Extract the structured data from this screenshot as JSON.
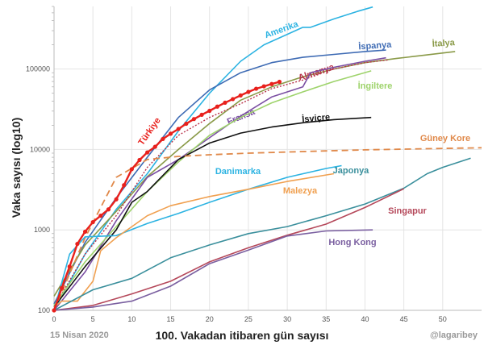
{
  "chart_data": {
    "type": "line",
    "title": "",
    "xlabel": "100. Vakadan itibaren gün sayısı",
    "ylabel": "Vaka sayısı  (log10)",
    "xlim": [
      0,
      55
    ],
    "ylim": [
      100,
      600000
    ],
    "yscale": "log",
    "grid": true,
    "xticks": [
      0,
      5,
      10,
      15,
      20,
      25,
      30,
      35,
      40,
      45,
      50
    ],
    "yticks": [
      100,
      1000,
      10000,
      100000
    ],
    "series": [
      {
        "name": "Amerika",
        "color": "#2cb3e2",
        "style": "solid",
        "points": [
          [
            0,
            100
          ],
          [
            4,
            500
          ],
          [
            8,
            1800
          ],
          [
            12,
            5000
          ],
          [
            16,
            17000
          ],
          [
            20,
            50000
          ],
          [
            24,
            125000
          ],
          [
            27,
            200000
          ],
          [
            30,
            270000
          ],
          [
            32,
            330000
          ],
          [
            33,
            330000
          ],
          [
            36,
            420000
          ],
          [
            39,
            520000
          ],
          [
            41,
            590000
          ]
        ]
      },
      {
        "name": "İspanya",
        "color": "#3e6bb4",
        "style": "solid",
        "points": [
          [
            0,
            120
          ],
          [
            4,
            700
          ],
          [
            8,
            2500
          ],
          [
            12,
            8000
          ],
          [
            16,
            25000
          ],
          [
            20,
            55000
          ],
          [
            24,
            90000
          ],
          [
            28,
            120000
          ],
          [
            32,
            140000
          ],
          [
            36,
            152000
          ],
          [
            40,
            165000
          ],
          [
            42.7,
            172000
          ]
        ]
      },
      {
        "name": "İtalya",
        "color": "#8a9a48",
        "style": "solid",
        "points": [
          [
            0,
            150
          ],
          [
            4,
            650
          ],
          [
            8,
            1700
          ],
          [
            12,
            4600
          ],
          [
            16,
            10000
          ],
          [
            20,
            21000
          ],
          [
            24,
            41000
          ],
          [
            28,
            60000
          ],
          [
            32,
            80000
          ],
          [
            36,
            100000
          ],
          [
            40,
            120000
          ],
          [
            44,
            135000
          ],
          [
            48,
            150000
          ],
          [
            51.6,
            165000
          ]
        ]
      },
      {
        "name": "Almanya",
        "color": "#b8324a",
        "style": "dotted",
        "points": [
          [
            0,
            110
          ],
          [
            4,
            500
          ],
          [
            8,
            1500
          ],
          [
            12,
            6000
          ],
          [
            16,
            15000
          ],
          [
            20,
            25000
          ],
          [
            24,
            37000
          ],
          [
            28,
            57000
          ],
          [
            32,
            73000
          ],
          [
            36,
            100000
          ],
          [
            40,
            120000
          ],
          [
            43,
            130000
          ]
        ]
      },
      {
        "name": "Fransa",
        "color": "#7b4fa3",
        "style": "solid",
        "points": [
          [
            0,
            100
          ],
          [
            4,
            300
          ],
          [
            8,
            1300
          ],
          [
            12,
            4500
          ],
          [
            16,
            7500
          ],
          [
            20,
            14000
          ],
          [
            24,
            26000
          ],
          [
            28,
            45000
          ],
          [
            32,
            60000
          ],
          [
            33,
            90000
          ],
          [
            36,
            105000
          ],
          [
            40,
            125000
          ],
          [
            42.7,
            138000
          ]
        ]
      },
      {
        "name": "İngiltere",
        "color": "#9ed36b",
        "style": "solid",
        "points": [
          [
            0,
            115
          ],
          [
            4,
            400
          ],
          [
            8,
            1100
          ],
          [
            12,
            3000
          ],
          [
            16,
            7000
          ],
          [
            20,
            15000
          ],
          [
            24,
            25000
          ],
          [
            28,
            38000
          ],
          [
            32,
            52000
          ],
          [
            36,
            70000
          ],
          [
            40.8,
            95000
          ]
        ]
      },
      {
        "name": "İsviçre",
        "color": "#111111",
        "style": "solid",
        "points": [
          [
            0,
            110
          ],
          [
            4,
            350
          ],
          [
            8,
            1000
          ],
          [
            10,
            2200
          ],
          [
            12,
            3000
          ],
          [
            16,
            7500
          ],
          [
            20,
            12000
          ],
          [
            24,
            16000
          ],
          [
            28,
            19000
          ],
          [
            32,
            21500
          ],
          [
            36,
            23500
          ],
          [
            40.8,
            25000
          ]
        ]
      },
      {
        "name": "Güney Kore",
        "color": "#e0894a",
        "style": "dashed",
        "points": [
          [
            0,
            100
          ],
          [
            4,
            800
          ],
          [
            8,
            4500
          ],
          [
            12,
            7500
          ],
          [
            16,
            8200
          ],
          [
            20,
            8600
          ],
          [
            25,
            9000
          ],
          [
            30,
            9300
          ],
          [
            35,
            9600
          ],
          [
            40,
            9900
          ],
          [
            45,
            10100
          ],
          [
            55,
            10500
          ]
        ]
      },
      {
        "name": "Danimarka",
        "color": "#2cb3e2",
        "style": "solid",
        "points": [
          [
            0,
            100
          ],
          [
            2,
            500
          ],
          [
            4,
            820
          ],
          [
            8,
            850
          ],
          [
            12,
            1200
          ],
          [
            16,
            1600
          ],
          [
            20,
            2200
          ],
          [
            25,
            3200
          ],
          [
            30,
            4500
          ],
          [
            35,
            5800
          ],
          [
            37,
            6300
          ]
        ]
      },
      {
        "name": "Malezya",
        "color": "#f0a050",
        "style": "solid",
        "points": [
          [
            0,
            110
          ],
          [
            1,
            130
          ],
          [
            3,
            130
          ],
          [
            5,
            230
          ],
          [
            6,
            550
          ],
          [
            8,
            800
          ],
          [
            12,
            1500
          ],
          [
            15,
            2000
          ],
          [
            20,
            2600
          ],
          [
            25,
            3200
          ],
          [
            30,
            4000
          ],
          [
            36,
            5000
          ]
        ]
      },
      {
        "name": "Japonya",
        "color": "#3a8f9c",
        "style": "solid",
        "points": [
          [
            0,
            100
          ],
          [
            5,
            180
          ],
          [
            10,
            250
          ],
          [
            15,
            450
          ],
          [
            20,
            650
          ],
          [
            25,
            900
          ],
          [
            30,
            1100
          ],
          [
            35,
            1500
          ],
          [
            40,
            2100
          ],
          [
            45,
            3300
          ],
          [
            48,
            5000
          ],
          [
            50,
            6000
          ],
          [
            53.6,
            7800
          ]
        ]
      },
      {
        "name": "Singapur",
        "color": "#b5485a",
        "style": "solid",
        "points": [
          [
            0,
            100
          ],
          [
            5,
            115
          ],
          [
            10,
            160
          ],
          [
            15,
            230
          ],
          [
            20,
            400
          ],
          [
            25,
            600
          ],
          [
            30,
            860
          ],
          [
            35,
            1180
          ],
          [
            40,
            1900
          ],
          [
            45,
            3250
          ]
        ]
      },
      {
        "name": "Hong Kong",
        "color": "#7a5fa0",
        "style": "solid",
        "points": [
          [
            0,
            100
          ],
          [
            5,
            110
          ],
          [
            10,
            130
          ],
          [
            15,
            200
          ],
          [
            20,
            380
          ],
          [
            25,
            560
          ],
          [
            30,
            840
          ],
          [
            35,
            970
          ],
          [
            41,
            1000
          ]
        ]
      },
      {
        "name": "Türkiye",
        "color": "#e8201c",
        "style": "markers",
        "points": [
          [
            0,
            100
          ],
          [
            1,
            190
          ],
          [
            2,
            350
          ],
          [
            3,
            670
          ],
          [
            4,
            950
          ],
          [
            5,
            1250
          ],
          [
            6,
            1500
          ],
          [
            7,
            1800
          ],
          [
            8,
            2400
          ],
          [
            9,
            3600
          ],
          [
            10,
            5700
          ],
          [
            11,
            7400
          ],
          [
            12,
            9200
          ],
          [
            13,
            10800
          ],
          [
            14,
            13500
          ],
          [
            15,
            15700
          ],
          [
            16,
            18000
          ],
          [
            17,
            20900
          ],
          [
            18,
            23900
          ],
          [
            19,
            27000
          ],
          [
            20,
            30200
          ],
          [
            21,
            34100
          ],
          [
            22,
            38200
          ],
          [
            23,
            42300
          ],
          [
            24,
            47000
          ],
          [
            25,
            52000
          ],
          [
            26,
            56900
          ],
          [
            27,
            61000
          ],
          [
            28,
            65100
          ],
          [
            29,
            69400
          ]
        ]
      }
    ]
  },
  "footer": {
    "date": "15 Nisan 2020",
    "credit": "@lagaribey"
  }
}
